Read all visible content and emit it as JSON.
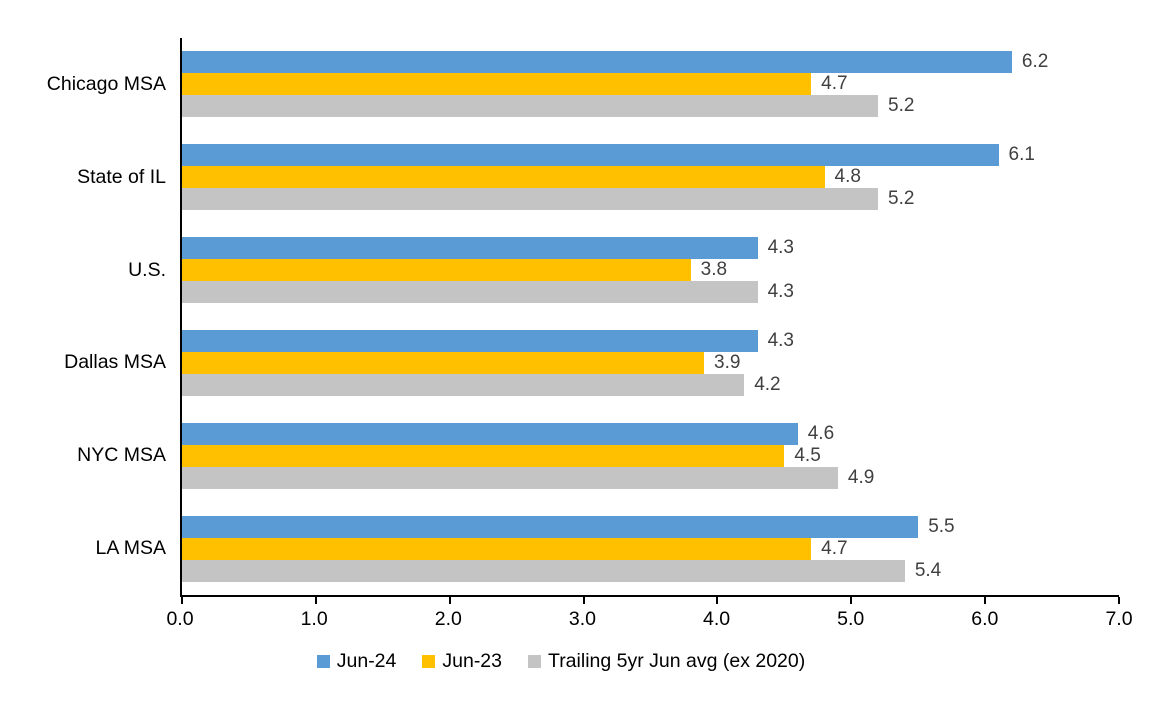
{
  "chart_data": {
    "type": "bar",
    "orientation": "horizontal",
    "title": "",
    "categories": [
      "Chicago MSA",
      "State of IL",
      "U.S.",
      "Dallas MSA",
      "NYC MSA",
      "LA MSA"
    ],
    "series": [
      {
        "name": "Jun-24",
        "color": "#5B9BD5",
        "values": [
          6.2,
          6.1,
          4.3,
          4.3,
          4.6,
          5.5
        ]
      },
      {
        "name": "Jun-23",
        "color": "#FFC000",
        "values": [
          4.7,
          4.8,
          3.8,
          3.9,
          4.5,
          4.7
        ]
      },
      {
        "name": "Trailing 5yr Jun avg (ex 2020)",
        "color": "#C4C4C4",
        "values": [
          5.2,
          5.2,
          4.3,
          4.2,
          4.9,
          5.4
        ]
      }
    ],
    "xlim": [
      0,
      7
    ],
    "x_ticks": [
      0.0,
      1.0,
      2.0,
      3.0,
      4.0,
      5.0,
      6.0,
      7.0
    ],
    "x_tick_labels": [
      "0.0",
      "1.0",
      "2.0",
      "3.0",
      "4.0",
      "5.0",
      "6.0",
      "7.0"
    ],
    "xlabel": "",
    "ylabel": "",
    "grid": false,
    "data_labels": true,
    "data_label_color": "#404040",
    "axis_color": "#000000",
    "legend_position": "bottom"
  }
}
